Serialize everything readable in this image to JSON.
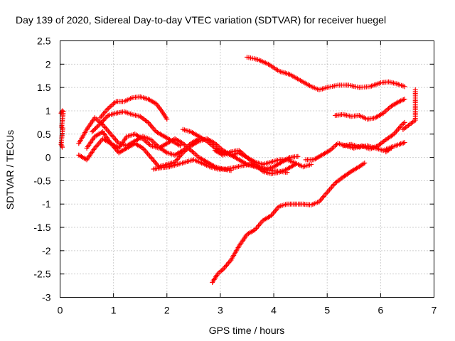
{
  "chart_data": {
    "type": "scatter",
    "title": "Day 139 of 2020, Sidereal Day-to-day VTEC variation (SDTVAR) for receiver huegel",
    "xlabel": "GPS time / hours",
    "ylabel": "SDTVAR / TECUs",
    "xlim": [
      0,
      7
    ],
    "ylim": [
      -3,
      2.5
    ],
    "x_ticks": [
      0,
      1,
      2,
      3,
      4,
      5,
      6,
      7
    ],
    "y_ticks": [
      -3,
      -2.5,
      -2,
      -1.5,
      -1,
      -0.5,
      0,
      0.5,
      1,
      1.5,
      2,
      2.5
    ],
    "x_tick_labels": [
      "0",
      "1",
      "2",
      "3",
      "4",
      "5",
      "6",
      "7"
    ],
    "y_tick_labels": [
      "-3",
      "-2.5",
      "-2",
      "-1.5",
      "-1",
      "-0.5",
      "0",
      "0.5",
      "1",
      "1.5",
      "2",
      "2.5"
    ],
    "grid": true,
    "marker": "+",
    "color": "#ff0000",
    "series": [
      {
        "name": "arc-top",
        "x": [
          3.5,
          3.7,
          3.9,
          4.1,
          4.3,
          4.5,
          4.7,
          4.85,
          5.0,
          5.2,
          5.4,
          5.6,
          5.8,
          6.0,
          6.15,
          6.3,
          6.45
        ],
        "y": [
          2.15,
          2.1,
          2.0,
          1.85,
          1.78,
          1.65,
          1.52,
          1.45,
          1.5,
          1.55,
          1.55,
          1.5,
          1.52,
          1.6,
          1.62,
          1.58,
          1.52
        ]
      },
      {
        "name": "arc-upper-right",
        "x": [
          5.15,
          5.3,
          5.45,
          5.6,
          5.75,
          5.9,
          6.05,
          6.2,
          6.35,
          6.45
        ],
        "y": [
          0.9,
          0.92,
          0.88,
          0.9,
          0.82,
          0.85,
          0.95,
          1.1,
          1.2,
          1.25
        ]
      },
      {
        "name": "arc-rising",
        "x": [
          2.85,
          2.95,
          3.05,
          3.2,
          3.35,
          3.5,
          3.65,
          3.8,
          3.95,
          4.1,
          4.25,
          4.4,
          4.55,
          4.7,
          4.85,
          5.0,
          5.15,
          5.3,
          5.45,
          5.6,
          5.7
        ],
        "y": [
          -2.68,
          -2.5,
          -2.4,
          -2.2,
          -1.9,
          -1.65,
          -1.55,
          -1.35,
          -1.25,
          -1.05,
          -1.0,
          -1.0,
          -1.0,
          -1.02,
          -0.95,
          -0.75,
          -0.55,
          -0.42,
          -0.3,
          -0.2,
          -0.12
        ]
      },
      {
        "name": "arc-mid-right",
        "x": [
          4.6,
          4.75,
          4.9,
          5.05,
          5.2,
          5.35,
          5.5,
          5.65,
          5.8,
          5.95,
          6.1,
          6.25,
          6.4,
          6.45
        ],
        "y": [
          -0.05,
          -0.05,
          0.05,
          0.15,
          0.3,
          0.25,
          0.2,
          0.25,
          0.18,
          0.25,
          0.38,
          0.5,
          0.7,
          0.75
        ]
      },
      {
        "name": "arc-low-right",
        "x": [
          5.3,
          5.45,
          5.6,
          5.75,
          5.9,
          6.05,
          6.2,
          6.35,
          6.45
        ],
        "y": [
          0.25,
          0.28,
          0.22,
          0.25,
          0.2,
          0.15,
          0.22,
          0.28,
          0.32
        ]
      },
      {
        "name": "arc-hump",
        "x": [
          0.75,
          0.9,
          1.05,
          1.2,
          1.35,
          1.5,
          1.65,
          1.8,
          1.9,
          2.0
        ],
        "y": [
          0.85,
          1.05,
          1.2,
          1.2,
          1.28,
          1.3,
          1.25,
          1.15,
          1.0,
          0.82
        ]
      },
      {
        "name": "arc-hump-2",
        "x": [
          0.6,
          0.75,
          0.9,
          1.05,
          1.2,
          1.35,
          1.5,
          1.65,
          1.8,
          1.95,
          2.1,
          2.25
        ],
        "y": [
          0.55,
          0.72,
          0.9,
          0.95,
          0.98,
          0.92,
          0.88,
          0.75,
          0.55,
          0.45,
          0.35,
          0.25
        ]
      },
      {
        "name": "arc-left-a",
        "x": [
          0.35,
          0.5,
          0.65,
          0.8,
          0.95,
          1.1,
          1.25,
          1.4,
          1.55,
          1.7,
          1.85,
          2.0,
          2.15,
          2.3,
          2.45,
          2.6
        ],
        "y": [
          0.3,
          0.6,
          0.85,
          0.7,
          0.5,
          0.3,
          0.25,
          0.35,
          0.45,
          0.38,
          0.22,
          0.1,
          0.05,
          0.15,
          0.3,
          0.4
        ]
      },
      {
        "name": "arc-left-b",
        "x": [
          0.35,
          0.5,
          0.65,
          0.8,
          0.95,
          1.1,
          1.25,
          1.4,
          1.55,
          1.7,
          1.85,
          2.0,
          2.15,
          2.3,
          2.45,
          2.6,
          2.75,
          2.9,
          3.05,
          3.2
        ],
        "y": [
          0.05,
          -0.05,
          0.2,
          0.4,
          0.3,
          0.2,
          0.45,
          0.5,
          0.4,
          0.25,
          0.2,
          0.3,
          0.4,
          0.3,
          0.15,
          0.0,
          -0.1,
          -0.2,
          -0.25,
          -0.28
        ]
      },
      {
        "name": "arc-left-c",
        "x": [
          0.5,
          0.65,
          0.8,
          0.95,
          1.1,
          1.25,
          1.4,
          1.55,
          1.7,
          1.85,
          2.0,
          2.15,
          2.3,
          2.45,
          2.6,
          2.75,
          2.9,
          3.05,
          3.2,
          3.35,
          3.5,
          3.65,
          3.8,
          3.95,
          4.1,
          4.25
        ],
        "y": [
          0.2,
          0.45,
          0.55,
          0.3,
          0.1,
          0.2,
          0.3,
          0.2,
          0.0,
          -0.2,
          -0.15,
          -0.1,
          0.1,
          0.25,
          0.35,
          0.4,
          0.3,
          0.15,
          0.05,
          -0.05,
          -0.15,
          -0.2,
          -0.25,
          -0.28,
          -0.3,
          -0.32
        ]
      },
      {
        "name": "arc-center",
        "x": [
          1.75,
          1.9,
          2.05,
          2.2,
          2.35,
          2.5,
          2.65,
          2.8,
          2.95,
          3.1,
          3.25,
          3.4,
          3.55,
          3.7,
          3.85,
          4.0,
          4.15,
          4.3,
          4.45
        ],
        "y": [
          -0.25,
          -0.22,
          -0.2,
          -0.15,
          -0.1,
          -0.05,
          -0.12,
          -0.2,
          -0.25,
          -0.25,
          -0.22,
          -0.18,
          -0.15,
          -0.2,
          -0.25,
          -0.2,
          -0.1,
          0.0,
          0.02
        ]
      },
      {
        "name": "arc-center-2",
        "x": [
          2.3,
          2.45,
          2.6,
          2.75,
          2.9,
          3.05,
          3.2,
          3.35,
          3.5,
          3.65,
          3.8,
          3.95,
          4.1,
          4.25,
          4.4,
          4.55,
          4.7
        ],
        "y": [
          0.6,
          0.55,
          0.45,
          0.35,
          0.2,
          0.1,
          0.05,
          0.1,
          0.0,
          -0.1,
          -0.15,
          -0.1,
          -0.05,
          -0.05,
          -0.12,
          -0.2,
          -0.15
        ]
      },
      {
        "name": "arc-center-3",
        "x": [
          2.9,
          3.05,
          3.2,
          3.35,
          3.5,
          3.65,
          3.8,
          3.95,
          4.1,
          4.25,
          4.4
        ],
        "y": [
          0.15,
          0.05,
          0.12,
          0.15,
          0.0,
          -0.15,
          -0.3,
          -0.35,
          -0.32,
          -0.25,
          -0.15
        ]
      },
      {
        "name": "edge-left",
        "x": [
          0.02,
          0.04,
          0.06,
          0.03,
          0.05,
          0.02,
          0.04,
          0.03
        ],
        "y": [
          0.95,
          1.0,
          0.98,
          0.65,
          0.63,
          0.28,
          0.22,
          0.25
        ]
      },
      {
        "name": "edge-right",
        "x": [
          6.65,
          6.65,
          6.65,
          6.65,
          6.42,
          6.2,
          6.1
        ],
        "y": [
          1.45,
          1.1,
          0.95,
          0.8,
          0.6,
          0.2,
          0.12
        ]
      }
    ]
  }
}
